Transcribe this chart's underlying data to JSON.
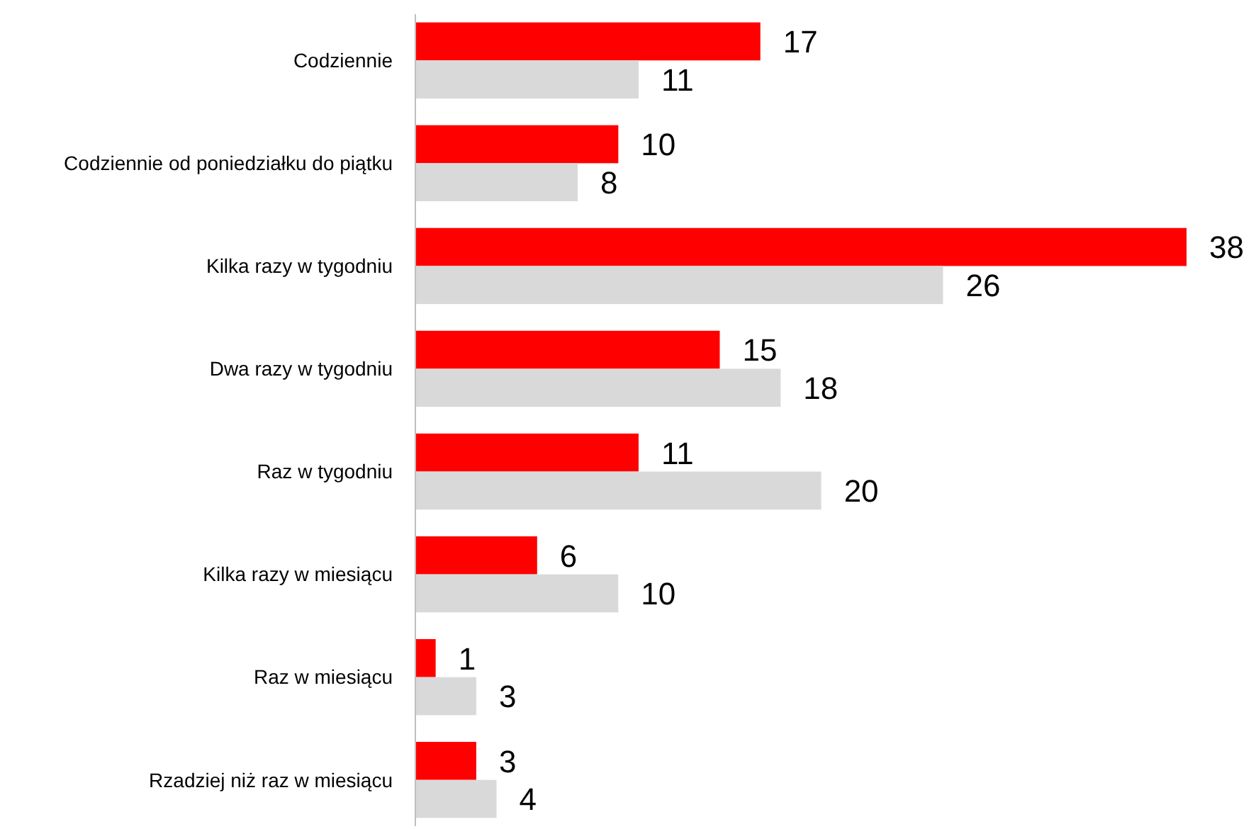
{
  "chart_data": {
    "type": "bar",
    "orientation": "horizontal",
    "categories": [
      "Codziennie",
      "Codziennie od poniedziałku do piątku",
      "Kilka razy w tygodniu",
      "Dwa razy w tygodniu",
      "Raz w tygodniu",
      "Kilka razy w miesiącu",
      "Raz w miesiącu",
      "Rzadziej niż raz w miesiącu"
    ],
    "series": [
      {
        "color": "#ff0000",
        "values": [
          17,
          10,
          38,
          15,
          11,
          6,
          1,
          3
        ]
      },
      {
        "color": "#d9d9d9",
        "values": [
          11,
          8,
          26,
          18,
          20,
          10,
          3,
          4
        ]
      }
    ],
    "data_labels": true
  }
}
